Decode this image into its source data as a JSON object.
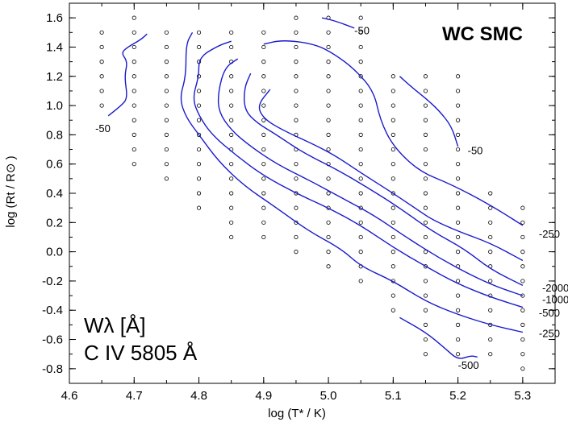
{
  "chart_data": {
    "type": "contour",
    "title": "WC SMC",
    "annotation_line1": "Wλ [Å]",
    "annotation_line2": "C IV 5805 Å",
    "xlabel": "log (T* / K)",
    "ylabel": "log (Rt / R⊙ )",
    "xlim": [
      4.6,
      5.35
    ],
    "ylim": [
      -0.9,
      1.7
    ],
    "xticks": [
      "4.6",
      "4.7",
      "4.8",
      "4.9",
      "5.0",
      "5.1",
      "5.2",
      "5.3"
    ],
    "yticks": [
      "-0.8",
      "-0.6",
      "-0.4",
      "-0.2",
      "0.0",
      "0.2",
      "0.4",
      "0.6",
      "0.8",
      "1.0",
      "1.2",
      "1.4",
      "1.6"
    ],
    "grid_points": [
      {
        "x": 4.65,
        "y": [
          1.0,
          1.1,
          1.2,
          1.3,
          1.4,
          1.5
        ]
      },
      {
        "x": 4.7,
        "y": [
          0.6,
          0.7,
          0.8,
          0.9,
          1.0,
          1.1,
          1.2,
          1.3,
          1.4,
          1.5,
          1.6
        ]
      },
      {
        "x": 4.75,
        "y": [
          0.5,
          0.6,
          0.7,
          0.8,
          0.9,
          1.0,
          1.1,
          1.2,
          1.3,
          1.4,
          1.5
        ]
      },
      {
        "x": 4.8,
        "y": [
          0.3,
          0.4,
          0.5,
          0.6,
          0.7,
          0.8,
          0.9,
          1.0,
          1.1,
          1.2,
          1.3,
          1.4,
          1.5
        ]
      },
      {
        "x": 4.85,
        "y": [
          0.1,
          0.2,
          0.3,
          0.4,
          0.5,
          0.6,
          0.7,
          0.8,
          0.9,
          1.0,
          1.1,
          1.2,
          1.3,
          1.4,
          1.5
        ]
      },
      {
        "x": 4.9,
        "y": [
          0.1,
          0.2,
          0.3,
          0.4,
          0.5,
          0.6,
          0.7,
          0.8,
          0.9,
          1.0,
          1.1,
          1.2,
          1.3,
          1.4,
          1.5
        ]
      },
      {
        "x": 4.95,
        "y": [
          0.0,
          0.1,
          0.2,
          0.3,
          0.4,
          0.5,
          0.6,
          0.7,
          0.8,
          0.9,
          1.0,
          1.1,
          1.2,
          1.3,
          1.4,
          1.5,
          1.6
        ]
      },
      {
        "x": 5.0,
        "y": [
          -0.1,
          0.0,
          0.1,
          0.2,
          0.3,
          0.4,
          0.5,
          0.6,
          0.7,
          0.8,
          0.9,
          1.0,
          1.1,
          1.2,
          1.3,
          1.4,
          1.5,
          1.6
        ]
      },
      {
        "x": 5.05,
        "y": [
          -0.2,
          -0.1,
          0.0,
          0.1,
          0.2,
          0.3,
          0.4,
          0.5,
          0.6,
          0.7,
          0.8,
          0.9,
          1.0,
          1.1,
          1.2,
          1.3,
          1.4,
          1.5,
          1.6
        ]
      },
      {
        "x": 5.1,
        "y": [
          -0.4,
          -0.3,
          -0.2,
          -0.1,
          0.0,
          0.1,
          0.2,
          0.3,
          0.4,
          0.5,
          0.6,
          0.7,
          0.8,
          0.9,
          1.0,
          1.1,
          1.2
        ]
      },
      {
        "x": 5.15,
        "y": [
          -0.7,
          -0.6,
          -0.5,
          -0.4,
          -0.3,
          -0.2,
          -0.1,
          0.0,
          0.1,
          0.2,
          0.3,
          0.4,
          0.5,
          0.6,
          0.7,
          0.8,
          0.9,
          1.0,
          1.1,
          1.2
        ]
      },
      {
        "x": 5.2,
        "y": [
          -0.7,
          -0.6,
          -0.5,
          -0.4,
          -0.3,
          -0.2,
          -0.1,
          0.0,
          0.1,
          0.2,
          0.3,
          0.4,
          0.5,
          0.6,
          0.7,
          0.8,
          0.9,
          1.0,
          1.1,
          1.2
        ]
      },
      {
        "x": 5.25,
        "y": [
          -0.7,
          -0.6,
          -0.5,
          -0.4,
          -0.3,
          -0.2,
          -0.1,
          0.0,
          0.1,
          0.2,
          0.3,
          0.4
        ]
      },
      {
        "x": 5.3,
        "y": [
          -0.8,
          -0.7,
          -0.6,
          -0.5,
          -0.4,
          -0.3,
          -0.2,
          -0.1,
          0.0,
          0.1,
          0.2,
          0.3
        ]
      }
    ],
    "contours": [
      {
        "name": "-50 left",
        "label": "-50",
        "label_at": [
          4.64,
          0.84
        ],
        "points": [
          [
            4.66,
            0.93
          ],
          [
            4.68,
            1.0
          ],
          [
            4.69,
            1.05
          ],
          [
            4.685,
            1.2
          ],
          [
            4.69,
            1.3
          ],
          [
            4.68,
            1.36
          ],
          [
            4.69,
            1.4
          ],
          [
            4.71,
            1.45
          ],
          [
            4.72,
            1.49
          ]
        ]
      },
      {
        "name": "-50 top",
        "label": "-50",
        "label_at": [
          5.04,
          1.51
        ],
        "points": [
          [
            4.99,
            1.6
          ],
          [
            5.01,
            1.58
          ],
          [
            5.04,
            1.53
          ]
        ]
      },
      {
        "name": "-50 right",
        "label": "-50",
        "label_at": [
          5.215,
          0.69
        ],
        "points": [
          [
            5.11,
            1.2
          ],
          [
            5.13,
            1.12
          ],
          [
            5.15,
            1.05
          ],
          [
            5.17,
            0.97
          ],
          [
            5.19,
            0.86
          ],
          [
            5.2,
            0.72
          ]
        ]
      },
      {
        "name": "-500 bottom",
        "label": "-500",
        "label_at": [
          5.2,
          -0.78
        ],
        "points": [
          [
            5.11,
            -0.45
          ],
          [
            5.15,
            -0.55
          ],
          [
            5.18,
            -0.66
          ],
          [
            5.2,
            -0.74
          ],
          [
            5.22,
            -0.71
          ],
          [
            5.23,
            -0.72
          ]
        ]
      },
      {
        "name": "-250 outer",
        "label": "-250",
        "label_at": [
          5.325,
          -0.56
        ],
        "points": [
          [
            4.79,
            1.5
          ],
          [
            4.78,
            1.42
          ],
          [
            4.78,
            1.2
          ],
          [
            4.77,
            1.05
          ],
          [
            4.78,
            0.92
          ],
          [
            4.8,
            0.8
          ],
          [
            4.83,
            0.62
          ],
          [
            4.87,
            0.45
          ],
          [
            4.92,
            0.3
          ],
          [
            4.97,
            0.14
          ],
          [
            5.02,
            0.02
          ],
          [
            5.05,
            -0.1
          ],
          [
            5.1,
            -0.2
          ],
          [
            5.15,
            -0.34
          ],
          [
            5.2,
            -0.43
          ],
          [
            5.25,
            -0.5
          ],
          [
            5.3,
            -0.55
          ]
        ]
      },
      {
        "name": "-500",
        "label": "-500",
        "label_at": [
          5.325,
          -0.42
        ],
        "points": [
          [
            4.85,
            1.44
          ],
          [
            4.83,
            1.41
          ],
          [
            4.8,
            1.33
          ],
          [
            4.8,
            1.2
          ],
          [
            4.79,
            1.05
          ],
          [
            4.8,
            0.93
          ],
          [
            4.82,
            0.8
          ],
          [
            4.86,
            0.65
          ],
          [
            4.9,
            0.52
          ],
          [
            4.95,
            0.4
          ],
          [
            5.0,
            0.3
          ],
          [
            5.05,
            0.18
          ],
          [
            5.1,
            0.03
          ],
          [
            5.15,
            -0.1
          ],
          [
            5.2,
            -0.22
          ],
          [
            5.25,
            -0.31
          ],
          [
            5.3,
            -0.38
          ]
        ]
      },
      {
        "name": "-1000",
        "label": "-1000",
        "label_at": [
          5.33,
          -0.33
        ],
        "points": [
          [
            4.86,
            1.32
          ],
          [
            4.84,
            1.26
          ],
          [
            4.83,
            1.1
          ],
          [
            4.83,
            0.96
          ],
          [
            4.85,
            0.83
          ],
          [
            4.88,
            0.72
          ],
          [
            4.92,
            0.6
          ],
          [
            4.97,
            0.49
          ],
          [
            5.02,
            0.37
          ],
          [
            5.07,
            0.25
          ],
          [
            5.12,
            0.1
          ],
          [
            5.17,
            -0.04
          ],
          [
            5.22,
            -0.16
          ],
          [
            5.26,
            -0.24
          ],
          [
            5.3,
            -0.3
          ]
        ]
      },
      {
        "name": "-2000",
        "label": "-2000",
        "label_at": [
          5.33,
          -0.25
        ],
        "points": [
          [
            4.88,
            1.22
          ],
          [
            4.87,
            1.12
          ],
          [
            4.87,
            0.97
          ],
          [
            4.89,
            0.88
          ],
          [
            4.92,
            0.8
          ],
          [
            4.96,
            0.68
          ],
          [
            5.01,
            0.57
          ],
          [
            5.06,
            0.44
          ],
          [
            5.11,
            0.3
          ],
          [
            5.16,
            0.14
          ],
          [
            5.21,
            0.02
          ],
          [
            5.25,
            -0.12
          ],
          [
            5.3,
            -0.23
          ]
        ]
      },
      {
        "name": "inner",
        "label": "",
        "label_at": [
          5.3,
          -0.2
        ],
        "points": [
          [
            4.91,
            1.11
          ],
          [
            4.89,
            1.0
          ],
          [
            4.9,
            0.91
          ],
          [
            4.93,
            0.83
          ],
          [
            4.97,
            0.75
          ],
          [
            5.01,
            0.66
          ],
          [
            5.05,
            0.54
          ],
          [
            5.1,
            0.4
          ],
          [
            5.14,
            0.28
          ],
          [
            5.16,
            0.22
          ],
          [
            5.2,
            0.14
          ],
          [
            5.25,
            0.06
          ],
          [
            5.3,
            -0.06
          ]
        ]
      },
      {
        "name": "-250 upper",
        "label": "-250",
        "label_at": [
          5.325,
          0.12
        ],
        "points": [
          [
            4.9,
            1.42
          ],
          [
            4.93,
            1.45
          ],
          [
            4.98,
            1.42
          ],
          [
            5.01,
            1.35
          ],
          [
            5.04,
            1.25
          ],
          [
            5.07,
            1.1
          ],
          [
            5.08,
            0.9
          ],
          [
            5.1,
            0.72
          ],
          [
            5.14,
            0.55
          ],
          [
            5.19,
            0.46
          ],
          [
            5.25,
            0.32
          ],
          [
            5.3,
            0.18
          ]
        ]
      }
    ],
    "grid": false,
    "legend_placement": "bottom-left"
  }
}
